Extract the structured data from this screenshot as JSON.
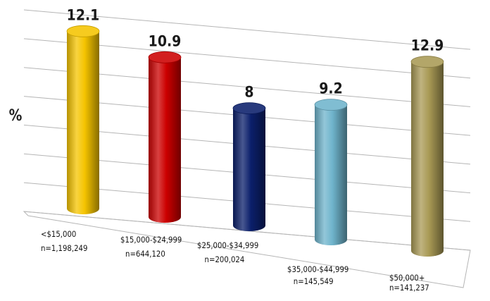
{
  "chart_data": {
    "type": "bar",
    "style": "3d-cylinder",
    "title": "",
    "xlabel": "",
    "ylabel": "%",
    "ylim": [
      0,
      14
    ],
    "grid": true,
    "legend": "none",
    "categories": [
      "<$15,000",
      "$15,000-$24,999",
      "$25,000-$34,999",
      "$35,000-$44,999",
      "$50,000+"
    ],
    "category_counts": [
      "n=1,198,249",
      "n=644,120",
      "n=200,024",
      "n=145,549",
      "n=141,237"
    ],
    "values": [
      12.1,
      10.9,
      8,
      9.2,
      12.9
    ],
    "value_labels": [
      "12.1",
      "10.9",
      "8",
      "9.2",
      "12.9"
    ],
    "colors": [
      "#f5c400",
      "#cc0000",
      "#0b1f6b",
      "#6fb4cc",
      "#a99a55"
    ]
  }
}
